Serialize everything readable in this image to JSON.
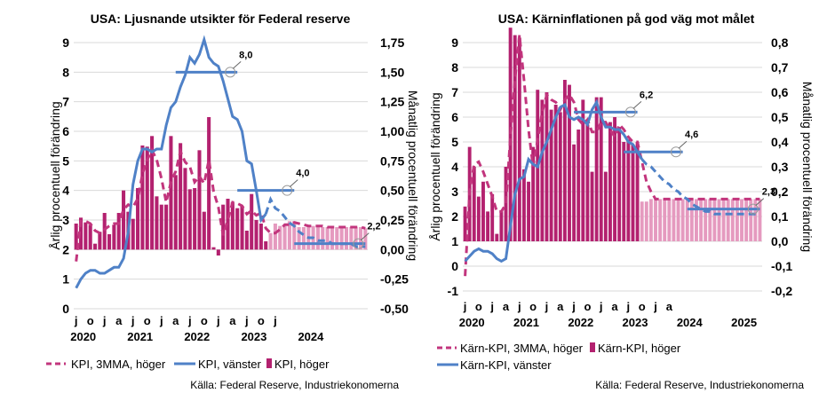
{
  "colors": {
    "bar_actual": "#b3216f",
    "bar_forecast": "#e59abf",
    "mma_line": "#c2357d",
    "kpi_line": "#4f81c7",
    "target_line": "#4f81c7",
    "grid": "#d9d9d9"
  },
  "chart_data": [
    {
      "type": "bar",
      "title": "USA: Ljusnande utsikter för Federal reserve",
      "ylabel_left": "Årlig procentuell förändring",
      "ylabel_right": "Månatlig procentuell förändring",
      "ylim_left": [
        0,
        9
      ],
      "ylim_right": [
        -0.5,
        1.75
      ],
      "left_ticks": [
        "0",
        "1",
        "2",
        "3",
        "4",
        "5",
        "6",
        "7",
        "8",
        "9"
      ],
      "right_ticks": [
        "-0,50",
        "-0,25",
        "0,00",
        "0,25",
        "0,50",
        "0,75",
        "1,00",
        "1,25",
        "1,50",
        "1,75"
      ],
      "x_month_labels": [
        "j",
        "o",
        "j",
        "a",
        "j",
        "o",
        "j",
        "a",
        "j",
        "o",
        "j",
        "a",
        "j",
        "o",
        "j"
      ],
      "x_year_labels": [
        "2020",
        "2021",
        "2022",
        "2023",
        "2024"
      ],
      "grid": true,
      "legend_position": "bottom",
      "source": "Källa: Federal Reserve, Industriekonomerna",
      "legend": [
        {
          "name": "KPI, 3MMA, höger",
          "style": "dashed"
        },
        {
          "name": "KPI, vänster",
          "style": "line"
        },
        {
          "name": "KPI, höger",
          "style": "bar"
        }
      ],
      "annotations": [
        "8,0",
        "4,0",
        "2,2"
      ],
      "annotation_values": [
        8.0,
        4.0,
        2.2
      ],
      "bars_monthly_pct": [
        0.22,
        0.27,
        0.23,
        0.21,
        0.05,
        0.15,
        0.31,
        0.13,
        0.21,
        0.31,
        0.5,
        0.32,
        0.26,
        0.52,
        0.88,
        0.87,
        0.96,
        0.45,
        0.38,
        0.38,
        0.96,
        0.63,
        0.9,
        0.69,
        0.51,
        0.52,
        0.84,
        0.32,
        1.12,
        0.02,
        -0.05,
        0.38,
        0.43,
        0.4,
        0.35,
        0.37,
        0.16,
        0.47,
        0.25,
        0.22,
        0.07,
        0.14,
        0.22,
        0.2,
        0.2,
        0.24,
        0.24,
        0.19,
        0.19,
        0.2,
        0.2,
        0.19,
        0.19,
        0.19,
        0.19,
        0.19,
        0.19,
        0.19,
        0.19,
        0.19,
        0.19,
        0.18
      ],
      "forecast_from_index": 41,
      "mma_monthly_pct": [
        -0.1,
        0.24,
        0.24,
        0.22,
        0.16,
        0.14,
        0.17,
        0.2,
        0.22,
        0.22,
        0.34,
        0.38,
        0.36,
        0.43,
        0.64,
        0.76,
        0.84,
        0.76,
        0.6,
        0.4,
        0.57,
        0.66,
        0.83,
        0.74,
        0.7,
        0.57,
        0.62,
        0.56,
        0.76,
        0.49,
        0.36,
        0.12,
        0.25,
        0.4,
        0.39,
        0.37,
        0.3,
        0.33,
        0.29,
        0.31,
        0.18,
        0.14,
        0.14,
        0.17,
        0.21,
        0.21,
        0.23,
        0.22,
        0.21,
        0.2,
        0.2,
        0.2,
        0.2,
        0.19,
        0.19,
        0.19,
        0.19,
        0.19,
        0.19,
        0.19,
        0.19,
        0.18
      ],
      "kpi_yoy": [
        0.7,
        1.0,
        1.2,
        1.3,
        1.3,
        1.2,
        1.2,
        1.3,
        1.4,
        1.4,
        1.7,
        2.6,
        4.2,
        5.0,
        5.4,
        5.4,
        5.3,
        5.4,
        5.4,
        6.2,
        6.8,
        7.0,
        7.5,
        7.9,
        8.5,
        8.3,
        8.6,
        9.1,
        8.5,
        8.3,
        8.2,
        7.7,
        7.1,
        6.5,
        6.4,
        6.0,
        5.0,
        4.9,
        4.0,
        3.0,
        3.2,
        3.7,
        3.4,
        3.3,
        3.1,
        2.9,
        2.8,
        2.6,
        2.5,
        2.4,
        2.4,
        2.3,
        2.3,
        2.3,
        2.2,
        2.2,
        2.2,
        2.2,
        2.2,
        2.1,
        2.1,
        2.1
      ],
      "kpi_yoy_forecast_from_index": 40,
      "target_segments_yoy": [
        {
          "value": 8.0,
          "from_index": 21,
          "to_index": 34
        },
        {
          "value": 4.0,
          "from_index": 34,
          "to_index": 46
        },
        {
          "value": 2.2,
          "from_index": 46,
          "to_index": 61
        }
      ]
    },
    {
      "type": "bar",
      "title": "USA: Kärninflationen på god väg mot målet",
      "ylabel_left": "Årlig procentuell förändring",
      "ylabel_right": "Månatlig procentuell förändring",
      "ylim_left": [
        -1,
        9
      ],
      "ylim_right": [
        -0.2,
        0.8
      ],
      "left_ticks": [
        "-1",
        "0",
        "1",
        "2",
        "3",
        "4",
        "5",
        "6",
        "7",
        "8",
        "9"
      ],
      "right_ticks": [
        "-0,2",
        "-0,1",
        "0,0",
        "0,1",
        "0,2",
        "0,3",
        "0,4",
        "0,5",
        "0,6",
        "0,7",
        "0,8"
      ],
      "x_month_labels": [
        "j",
        "o",
        "j",
        "a",
        "j",
        "o",
        "j",
        "a",
        "j",
        "o",
        "j",
        "a",
        "j",
        "o",
        "j",
        "a"
      ],
      "x_year_labels": [
        "2020",
        "2021",
        "2022",
        "2023",
        "2024",
        "2025"
      ],
      "grid": true,
      "legend_position": "bottom",
      "source": "Källa: Federal Reserve, Industriekonomerna",
      "legend": [
        {
          "name": "Kärn-KPI, 3MMA, höger",
          "style": "dashed"
        },
        {
          "name": "Kärn-KPI, höger",
          "style": "bar"
        },
        {
          "name": "Kärn-KPI, vänster",
          "style": "line"
        }
      ],
      "annotations": [
        "6,2",
        "4,6",
        "2,3"
      ],
      "annotation_values": [
        6.2,
        4.6,
        2.3
      ],
      "bars_monthly_pct": [
        0.14,
        0.38,
        0.3,
        0.18,
        0.24,
        0.12,
        0.19,
        0.03,
        0.12,
        0.3,
        0.86,
        0.83,
        0.82,
        0.29,
        0.24,
        0.38,
        0.61,
        0.57,
        0.6,
        0.53,
        0.55,
        0.52,
        0.65,
        0.63,
        0.39,
        0.45,
        0.57,
        0.47,
        0.28,
        0.58,
        0.58,
        0.28,
        0.48,
        0.5,
        0.46,
        0.4,
        0.41,
        0.39,
        0.4,
        0.16,
        0.16,
        0.17,
        0.17,
        0.17,
        0.17,
        0.17,
        0.17,
        0.17,
        0.17,
        0.17,
        0.17,
        0.17,
        0.17,
        0.17,
        0.17,
        0.17,
        0.17,
        0.17,
        0.17,
        0.17,
        0.17,
        0.17,
        0.17,
        0.17,
        0.17,
        0.17
      ],
      "forecast_from_index": 39,
      "mma_monthly_pct": [
        -0.14,
        0.2,
        0.31,
        0.32,
        0.28,
        0.23,
        0.18,
        0.12,
        0.12,
        0.15,
        0.42,
        0.65,
        0.83,
        0.65,
        0.45,
        0.3,
        0.41,
        0.52,
        0.59,
        0.57,
        0.56,
        0.53,
        0.57,
        0.59,
        0.56,
        0.49,
        0.47,
        0.49,
        0.44,
        0.44,
        0.48,
        0.48,
        0.45,
        0.42,
        0.47,
        0.45,
        0.42,
        0.4,
        0.4,
        0.32,
        0.24,
        0.2,
        0.17,
        0.17,
        0.17,
        0.17,
        0.17,
        0.17,
        0.17,
        0.17,
        0.17,
        0.17,
        0.17,
        0.17,
        0.17,
        0.17,
        0.17,
        0.17,
        0.17,
        0.17,
        0.17,
        0.17,
        0.17,
        0.17,
        0.17,
        0.17
      ],
      "kpi_yoy": [
        0.2,
        0.4,
        0.6,
        0.7,
        0.6,
        0.6,
        0.5,
        0.3,
        0.2,
        0.3,
        1.6,
        2.9,
        3.5,
        3.6,
        4.3,
        4.1,
        4.0,
        4.6,
        5.0,
        5.5,
        6.0,
        6.4,
        6.5,
        6.0,
        5.9,
        6.0,
        5.9,
        5.7,
        6.3,
        6.6,
        6.0,
        5.6,
        5.6,
        5.5,
        5.5,
        5.3,
        5.0,
        4.9,
        4.6,
        4.3,
        4.1,
        4.0,
        3.8,
        3.6,
        3.4,
        3.3,
        3.1,
        3.0,
        2.8,
        2.7,
        2.5,
        2.4,
        2.3,
        2.2,
        2.2,
        2.1,
        2.1,
        2.1,
        2.1,
        2.1,
        2.1,
        2.1,
        2.1,
        2.1,
        2.1,
        2.1
      ],
      "kpi_yoy_forecast_from_index": 39,
      "target_segments_yoy": [
        {
          "value": 6.2,
          "from_index": 24,
          "to_index": 38
        },
        {
          "value": 4.6,
          "from_index": 35,
          "to_index": 48
        },
        {
          "value": 2.3,
          "from_index": 49,
          "to_index": 65
        }
      ]
    }
  ]
}
